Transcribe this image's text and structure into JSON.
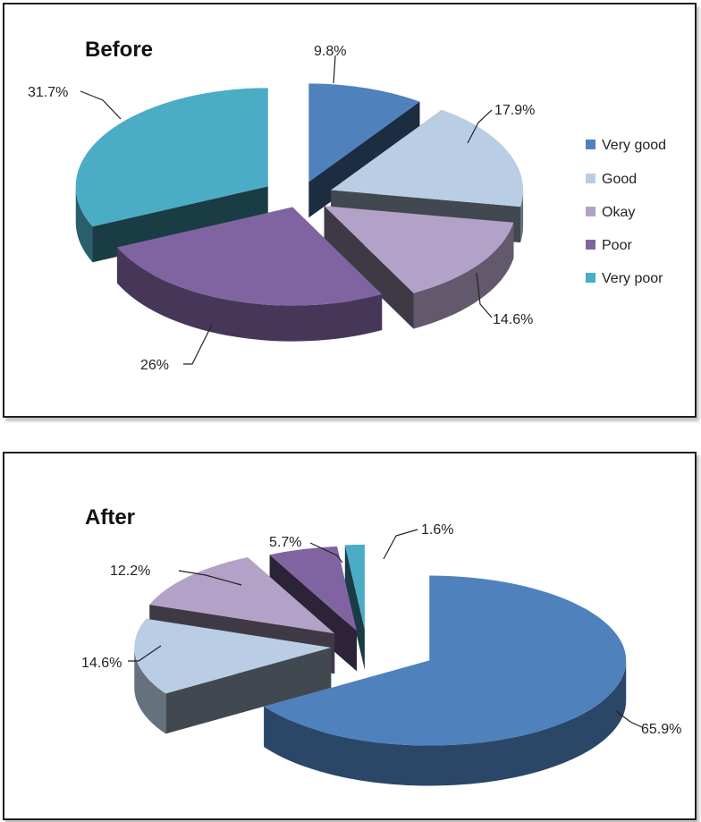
{
  "charts": [
    {
      "title": "Before",
      "legend": [
        "Very good",
        "Good",
        "Okay",
        "Poor",
        "Very poor"
      ],
      "legend_position": "right",
      "data_labels": [
        "9.8%",
        "17.9%",
        "14.6%",
        "26%",
        "31.7%"
      ]
    },
    {
      "title": "After",
      "legend": [],
      "data_labels": [
        "65.9%",
        "14.6%",
        "12.2%",
        "5.7%",
        "1.6%"
      ]
    }
  ],
  "colors": {
    "very_good": "#4F81BD",
    "good": "#B9CDE5",
    "okay": "#B3A2C7",
    "poor": "#8064A2",
    "very_poor": "#4BACC6"
  },
  "chart_data": [
    {
      "type": "pie",
      "style": "3d-exploded",
      "title": "Before",
      "categories": [
        "Very good",
        "Good",
        "Okay",
        "Poor",
        "Very poor"
      ],
      "values": [
        9.8,
        17.9,
        14.6,
        26,
        31.7
      ],
      "legend": "right"
    },
    {
      "type": "pie",
      "style": "3d-exploded",
      "title": "After",
      "categories": [
        "Very good",
        "Good",
        "Okay",
        "Poor",
        "Very poor"
      ],
      "values": [
        65.9,
        14.6,
        12.2,
        5.7,
        1.6
      ],
      "legend": "none"
    }
  ]
}
